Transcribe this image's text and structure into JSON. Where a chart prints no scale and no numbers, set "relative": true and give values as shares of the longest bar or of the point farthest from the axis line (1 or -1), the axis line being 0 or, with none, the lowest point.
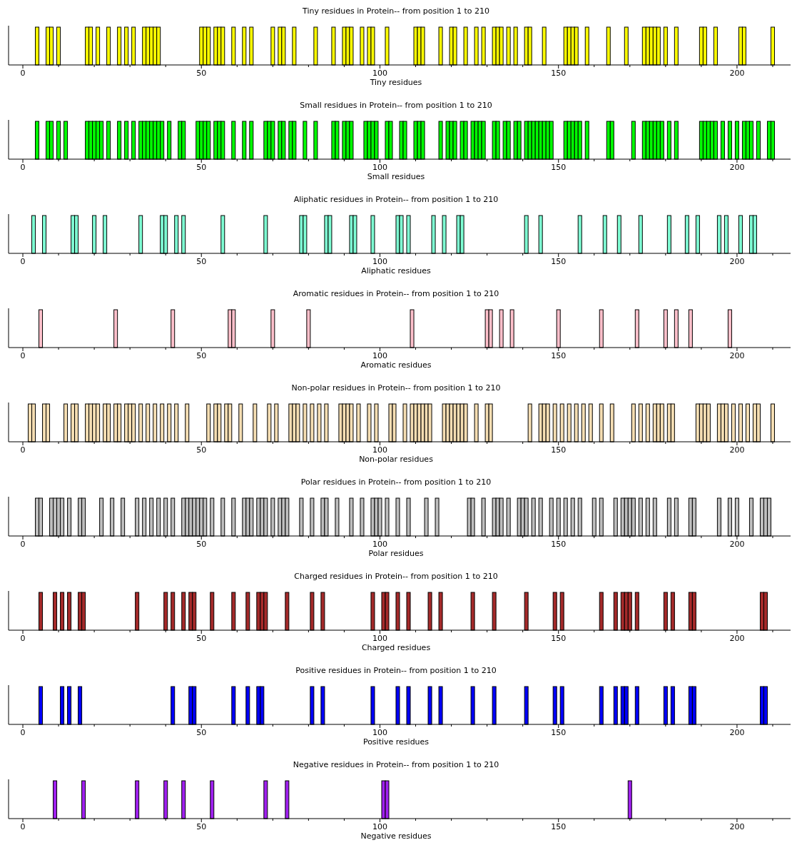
{
  "chart_data": [
    {
      "type": "bar",
      "title": "Tiny residues in Protein-- from position 1 to 210",
      "xlabel": "Tiny residues",
      "color": "#ffff00",
      "relative": true,
      "tick_labels": "x",
      "xlim": [
        -4,
        215
      ],
      "xticks": [
        0,
        {
          "value": 10,
          "label": null
        },
        {
          "value": 20,
          "label": null
        },
        {
          "value": 30,
          "label": null
        },
        {
          "value": 40,
          "label": null
        },
        50,
        {
          "value": 60,
          "label": null
        },
        {
          "value": 70,
          "label": null
        },
        {
          "value": 80,
          "label": null
        },
        {
          "value": 90,
          "label": null
        },
        100,
        {
          "value": 110,
          "label": null
        },
        {
          "value": 120,
          "label": null
        },
        {
          "value": 130,
          "label": null
        },
        {
          "value": 140,
          "label": null
        },
        150,
        {
          "value": 160,
          "label": null
        },
        {
          "value": 170,
          "label": null
        },
        {
          "value": 180,
          "label": null
        },
        {
          "value": 190,
          "label": null
        },
        200,
        {
          "value": 210,
          "label": null
        }
      ],
      "x": [
        4,
        7,
        8,
        10,
        18,
        19,
        21,
        24,
        27,
        29,
        31,
        34,
        35,
        36,
        37,
        38,
        50,
        51,
        52,
        54,
        55,
        56,
        59,
        62,
        64,
        70,
        72,
        73,
        76,
        82,
        87,
        90,
        91,
        92,
        95,
        97,
        98,
        102,
        110,
        111,
        112,
        117,
        120,
        121,
        124,
        127,
        129,
        132,
        133,
        134,
        136,
        138,
        141,
        142,
        146,
        152,
        153,
        154,
        155,
        158,
        164,
        169,
        174,
        175,
        176,
        177,
        178,
        180,
        183,
        190,
        191,
        194,
        201,
        202,
        210
      ],
      "values": [
        1,
        1,
        1,
        1,
        1,
        1,
        1,
        1,
        1,
        1,
        1,
        1,
        1,
        1,
        1,
        1,
        1,
        1,
        1,
        1,
        1,
        1,
        1,
        1,
        1,
        1,
        1,
        1,
        1,
        1,
        1,
        1,
        1,
        1,
        1,
        1,
        1,
        1,
        1,
        1,
        1,
        1,
        1,
        1,
        1,
        1,
        1,
        1,
        1,
        1,
        1,
        1,
        1,
        1,
        1,
        1,
        1,
        1,
        1,
        1,
        1,
        1,
        1,
        1,
        1,
        1,
        1,
        1,
        1,
        1,
        1,
        1,
        1,
        1,
        1
      ]
    },
    {
      "type": "bar",
      "title": "Small residues in Protein-- from position 1 to 210",
      "xlabel": "Small residues",
      "color": "#00ff00",
      "relative": true,
      "tick_labels": "x",
      "xlim": [
        -4,
        215
      ],
      "xticks": [
        0,
        {
          "value": 10,
          "label": null
        },
        {
          "value": 20,
          "label": null
        },
        {
          "value": 30,
          "label": null
        },
        {
          "value": 40,
          "label": null
        },
        50,
        {
          "value": 60,
          "label": null
        },
        {
          "value": 70,
          "label": null
        },
        {
          "value": 80,
          "label": null
        },
        {
          "value": 90,
          "label": null
        },
        100,
        {
          "value": 110,
          "label": null
        },
        {
          "value": 120,
          "label": null
        },
        {
          "value": 130,
          "label": null
        },
        {
          "value": 140,
          "label": null
        },
        150,
        {
          "value": 160,
          "label": null
        },
        {
          "value": 170,
          "label": null
        },
        {
          "value": 180,
          "label": null
        },
        {
          "value": 190,
          "label": null
        },
        200,
        {
          "value": 210,
          "label": null
        }
      ],
      "x": [
        4,
        7,
        8,
        10,
        12,
        18,
        19,
        20,
        21,
        22,
        24,
        27,
        29,
        31,
        33,
        34,
        35,
        36,
        37,
        38,
        39,
        41,
        44,
        45,
        49,
        50,
        51,
        52,
        54,
        55,
        56,
        59,
        62,
        64,
        68,
        69,
        70,
        72,
        73,
        75,
        76,
        79,
        82,
        87,
        88,
        90,
        91,
        92,
        96,
        97,
        98,
        99,
        102,
        103,
        106,
        107,
        110,
        111,
        112,
        117,
        119,
        120,
        121,
        123,
        124,
        126,
        127,
        128,
        129,
        132,
        133,
        135,
        136,
        138,
        139,
        141,
        142,
        143,
        144,
        145,
        146,
        147,
        148,
        152,
        153,
        154,
        155,
        156,
        158,
        164,
        165,
        171,
        174,
        175,
        176,
        177,
        178,
        179,
        181,
        183,
        190,
        191,
        192,
        193,
        194,
        196,
        198,
        200,
        202,
        203,
        204,
        206,
        209,
        210
      ],
      "values": [
        1,
        1,
        1,
        1,
        1,
        1,
        1,
        1,
        1,
        1,
        1,
        1,
        1,
        1,
        1,
        1,
        1,
        1,
        1,
        1,
        1,
        1,
        1,
        1,
        1,
        1,
        1,
        1,
        1,
        1,
        1,
        1,
        1,
        1,
        1,
        1,
        1,
        1,
        1,
        1,
        1,
        1,
        1,
        1,
        1,
        1,
        1,
        1,
        1,
        1,
        1,
        1,
        1,
        1,
        1,
        1,
        1,
        1,
        1,
        1,
        1,
        1,
        1,
        1,
        1,
        1,
        1,
        1,
        1,
        1,
        1,
        1,
        1,
        1,
        1,
        1,
        1,
        1,
        1,
        1,
        1,
        1,
        1,
        1,
        1,
        1,
        1,
        1,
        1,
        1,
        1,
        1,
        1,
        1,
        1,
        1,
        1,
        1,
        1,
        1,
        1,
        1,
        1,
        1,
        1,
        1,
        1,
        1,
        1,
        1,
        1,
        1,
        1,
        1
      ]
    },
    {
      "type": "bar",
      "title": "Aliphatic residues in Protein-- from position 1 to 210",
      "xlabel": "Aliphatic residues",
      "color": "#7fffd4",
      "relative": true,
      "tick_labels": "x",
      "xlim": [
        -4,
        215
      ],
      "xticks": [
        0,
        {
          "value": 10,
          "label": null
        },
        {
          "value": 20,
          "label": null
        },
        {
          "value": 30,
          "label": null
        },
        {
          "value": 40,
          "label": null
        },
        50,
        {
          "value": 60,
          "label": null
        },
        {
          "value": 70,
          "label": null
        },
        {
          "value": 80,
          "label": null
        },
        {
          "value": 90,
          "label": null
        },
        100,
        {
          "value": 110,
          "label": null
        },
        {
          "value": 120,
          "label": null
        },
        {
          "value": 130,
          "label": null
        },
        {
          "value": 140,
          "label": null
        },
        150,
        {
          "value": 160,
          "label": null
        },
        {
          "value": 170,
          "label": null
        },
        {
          "value": 180,
          "label": null
        },
        {
          "value": 190,
          "label": null
        },
        200,
        {
          "value": 210,
          "label": null
        }
      ],
      "x": [
        3,
        6,
        14,
        15,
        20,
        23,
        33,
        39,
        40,
        43,
        45,
        56,
        68,
        78,
        79,
        85,
        86,
        92,
        93,
        98,
        105,
        106,
        108,
        115,
        118,
        122,
        123,
        141,
        145,
        156,
        163,
        167,
        173,
        181,
        186,
        189,
        195,
        197,
        201,
        204,
        205
      ],
      "values": [
        1,
        1,
        1,
        1,
        1,
        1,
        1,
        1,
        1,
        1,
        1,
        1,
        1,
        1,
        1,
        1,
        1,
        1,
        1,
        1,
        1,
        1,
        1,
        1,
        1,
        1,
        1,
        1,
        1,
        1,
        1,
        1,
        1,
        1,
        1,
        1,
        1,
        1,
        1,
        1,
        1
      ]
    },
    {
      "type": "bar",
      "title": "Aromatic residues in Protein-- from position 1 to 210",
      "xlabel": "Aromatic residues",
      "color": "#ffc0cb",
      "relative": true,
      "tick_labels": "x",
      "xlim": [
        -4,
        215
      ],
      "xticks": [
        0,
        {
          "value": 10,
          "label": null
        },
        {
          "value": 20,
          "label": null
        },
        {
          "value": 30,
          "label": null
        },
        {
          "value": 40,
          "label": null
        },
        50,
        {
          "value": 60,
          "label": null
        },
        {
          "value": 70,
          "label": null
        },
        {
          "value": 80,
          "label": null
        },
        {
          "value": 90,
          "label": null
        },
        100,
        {
          "value": 110,
          "label": null
        },
        {
          "value": 120,
          "label": null
        },
        {
          "value": 130,
          "label": null
        },
        {
          "value": 140,
          "label": null
        },
        150,
        {
          "value": 160,
          "label": null
        },
        {
          "value": 170,
          "label": null
        },
        {
          "value": 180,
          "label": null
        },
        {
          "value": 190,
          "label": null
        },
        200,
        {
          "value": 210,
          "label": null
        }
      ],
      "x": [
        5,
        26,
        42,
        58,
        59,
        70,
        80,
        109,
        130,
        131,
        134,
        137,
        150,
        162,
        172,
        180,
        183,
        187,
        198
      ],
      "values": [
        1,
        1,
        1,
        1,
        1,
        1,
        1,
        1,
        1,
        1,
        1,
        1,
        1,
        1,
        1,
        1,
        1,
        1,
        1
      ]
    },
    {
      "type": "bar",
      "title": "Non-polar residues in Protein-- from position 1 to 210",
      "xlabel": "Non-polar residues",
      "color": "#f5deb3",
      "relative": true,
      "tick_labels": "x",
      "xlim": [
        -4,
        215
      ],
      "xticks": [
        0,
        {
          "value": 10,
          "label": null
        },
        {
          "value": 20,
          "label": null
        },
        {
          "value": 30,
          "label": null
        },
        {
          "value": 40,
          "label": null
        },
        50,
        {
          "value": 60,
          "label": null
        },
        {
          "value": 70,
          "label": null
        },
        {
          "value": 80,
          "label": null
        },
        {
          "value": 90,
          "label": null
        },
        100,
        {
          "value": 110,
          "label": null
        },
        {
          "value": 120,
          "label": null
        },
        {
          "value": 130,
          "label": null
        },
        {
          "value": 140,
          "label": null
        },
        150,
        {
          "value": 160,
          "label": null
        },
        {
          "value": 170,
          "label": null
        },
        {
          "value": 180,
          "label": null
        },
        {
          "value": 190,
          "label": null
        },
        200,
        {
          "value": 210,
          "label": null
        }
      ],
      "x": [
        2,
        3,
        6,
        7,
        12,
        14,
        15,
        18,
        19,
        20,
        21,
        23,
        24,
        26,
        27,
        29,
        30,
        31,
        33,
        35,
        37,
        39,
        41,
        43,
        46,
        52,
        54,
        55,
        57,
        58,
        61,
        65,
        69,
        71,
        75,
        76,
        77,
        79,
        81,
        83,
        85,
        89,
        90,
        91,
        92,
        94,
        97,
        99,
        103,
        104,
        107,
        109,
        110,
        111,
        112,
        113,
        114,
        118,
        119,
        120,
        121,
        122,
        123,
        124,
        127,
        130,
        131,
        142,
        145,
        146,
        147,
        149,
        151,
        153,
        155,
        157,
        159,
        162,
        165,
        171,
        173,
        175,
        177,
        178,
        179,
        181,
        182,
        189,
        190,
        191,
        192,
        195,
        196,
        197,
        199,
        201,
        203,
        205,
        206,
        210
      ],
      "values": [
        1,
        1,
        1,
        1,
        1,
        1,
        1,
        1,
        1,
        1,
        1,
        1,
        1,
        1,
        1,
        1,
        1,
        1,
        1,
        1,
        1,
        1,
        1,
        1,
        1,
        1,
        1,
        1,
        1,
        1,
        1,
        1,
        1,
        1,
        1,
        1,
        1,
        1,
        1,
        1,
        1,
        1,
        1,
        1,
        1,
        1,
        1,
        1,
        1,
        1,
        1,
        1,
        1,
        1,
        1,
        1,
        1,
        1,
        1,
        1,
        1,
        1,
        1,
        1,
        1,
        1,
        1,
        1,
        1,
        1,
        1,
        1,
        1,
        1,
        1,
        1,
        1,
        1,
        1,
        1,
        1,
        1,
        1,
        1,
        1,
        1,
        1,
        1,
        1,
        1,
        1,
        1,
        1,
        1,
        1,
        1,
        1,
        1,
        1,
        1
      ]
    },
    {
      "type": "bar",
      "title": "Polar residues in Protein-- from position 1 to 210",
      "xlabel": "Polar residues",
      "color": "#bebebe",
      "relative": true,
      "tick_labels": "x",
      "xlim": [
        -4,
        215
      ],
      "xticks": [
        0,
        {
          "value": 10,
          "label": null
        },
        {
          "value": 20,
          "label": null
        },
        {
          "value": 30,
          "label": null
        },
        {
          "value": 40,
          "label": null
        },
        50,
        {
          "value": 60,
          "label": null
        },
        {
          "value": 70,
          "label": null
        },
        {
          "value": 80,
          "label": null
        },
        {
          "value": 90,
          "label": null
        },
        100,
        {
          "value": 110,
          "label": null
        },
        {
          "value": 120,
          "label": null
        },
        {
          "value": 130,
          "label": null
        },
        {
          "value": 140,
          "label": null
        },
        150,
        {
          "value": 160,
          "label": null
        },
        {
          "value": 170,
          "label": null
        },
        {
          "value": 180,
          "label": null
        },
        {
          "value": 190,
          "label": null
        },
        200,
        {
          "value": 210,
          "label": null
        }
      ],
      "x": [
        4,
        5,
        8,
        9,
        10,
        11,
        13,
        16,
        17,
        22,
        25,
        28,
        32,
        34,
        36,
        38,
        40,
        42,
        45,
        46,
        47,
        48,
        49,
        50,
        51,
        53,
        56,
        59,
        62,
        63,
        64,
        66,
        67,
        68,
        70,
        72,
        73,
        74,
        78,
        81,
        84,
        85,
        88,
        92,
        95,
        98,
        99,
        100,
        102,
        105,
        108,
        113,
        116,
        125,
        126,
        129,
        132,
        133,
        134,
        136,
        139,
        140,
        141,
        143,
        145,
        148,
        150,
        152,
        154,
        156,
        160,
        162,
        166,
        168,
        169,
        170,
        171,
        173,
        175,
        177,
        181,
        183,
        187,
        188,
        195,
        198,
        200,
        204,
        207,
        208,
        209
      ],
      "values": [
        1,
        1,
        1,
        1,
        1,
        1,
        1,
        1,
        1,
        1,
        1,
        1,
        1,
        1,
        1,
        1,
        1,
        1,
        1,
        1,
        1,
        1,
        1,
        1,
        1,
        1,
        1,
        1,
        1,
        1,
        1,
        1,
        1,
        1,
        1,
        1,
        1,
        1,
        1,
        1,
        1,
        1,
        1,
        1,
        1,
        1,
        1,
        1,
        1,
        1,
        1,
        1,
        1,
        1,
        1,
        1,
        1,
        1,
        1,
        1,
        1,
        1,
        1,
        1,
        1,
        1,
        1,
        1,
        1,
        1,
        1,
        1,
        1,
        1,
        1,
        1,
        1,
        1,
        1,
        1,
        1,
        1,
        1,
        1,
        1,
        1,
        1,
        1,
        1,
        1,
        1
      ]
    },
    {
      "type": "bar",
      "title": "Charged residues in Protein-- from position 1 to 210",
      "xlabel": "Charged residues",
      "color": "#a52a2a",
      "relative": true,
      "tick_labels": "x",
      "xlim": [
        -4,
        215
      ],
      "xticks": [
        0,
        {
          "value": 10,
          "label": null
        },
        {
          "value": 20,
          "label": null
        },
        {
          "value": 30,
          "label": null
        },
        {
          "value": 40,
          "label": null
        },
        50,
        {
          "value": 60,
          "label": null
        },
        {
          "value": 70,
          "label": null
        },
        {
          "value": 80,
          "label": null
        },
        {
          "value": 90,
          "label": null
        },
        100,
        {
          "value": 110,
          "label": null
        },
        {
          "value": 120,
          "label": null
        },
        {
          "value": 130,
          "label": null
        },
        {
          "value": 140,
          "label": null
        },
        150,
        {
          "value": 160,
          "label": null
        },
        {
          "value": 170,
          "label": null
        },
        {
          "value": 180,
          "label": null
        },
        {
          "value": 190,
          "label": null
        },
        200,
        {
          "value": 210,
          "label": null
        }
      ],
      "x": [
        5,
        9,
        11,
        13,
        16,
        17,
        32,
        40,
        42,
        45,
        47,
        48,
        53,
        59,
        63,
        66,
        67,
        68,
        74,
        81,
        84,
        98,
        101,
        102,
        105,
        108,
        114,
        117,
        126,
        132,
        141,
        149,
        151,
        162,
        166,
        168,
        169,
        170,
        172,
        180,
        182,
        187,
        188,
        207,
        208
      ],
      "values": [
        1,
        1,
        1,
        1,
        1,
        1,
        1,
        1,
        1,
        1,
        1,
        1,
        1,
        1,
        1,
        1,
        1,
        1,
        1,
        1,
        1,
        1,
        1,
        1,
        1,
        1,
        1,
        1,
        1,
        1,
        1,
        1,
        1,
        1,
        1,
        1,
        1,
        1,
        1,
        1,
        1,
        1,
        1,
        1,
        1
      ]
    },
    {
      "type": "bar",
      "title": "Positive residues in Protein-- from position 1 to 210",
      "xlabel": "Positive residues",
      "color": "#0000ff",
      "relative": true,
      "tick_labels": "x",
      "xlim": [
        -4,
        215
      ],
      "xticks": [
        0,
        {
          "value": 10,
          "label": null
        },
        {
          "value": 20,
          "label": null
        },
        {
          "value": 30,
          "label": null
        },
        {
          "value": 40,
          "label": null
        },
        50,
        {
          "value": 60,
          "label": null
        },
        {
          "value": 70,
          "label": null
        },
        {
          "value": 80,
          "label": null
        },
        {
          "value": 90,
          "label": null
        },
        100,
        {
          "value": 110,
          "label": null
        },
        {
          "value": 120,
          "label": null
        },
        {
          "value": 130,
          "label": null
        },
        {
          "value": 140,
          "label": null
        },
        150,
        {
          "value": 160,
          "label": null
        },
        {
          "value": 170,
          "label": null
        },
        {
          "value": 180,
          "label": null
        },
        {
          "value": 190,
          "label": null
        },
        200,
        {
          "value": 210,
          "label": null
        }
      ],
      "x": [
        5,
        11,
        13,
        16,
        42,
        47,
        48,
        59,
        63,
        66,
        67,
        81,
        84,
        98,
        105,
        108,
        114,
        117,
        126,
        132,
        141,
        149,
        151,
        162,
        166,
        168,
        169,
        172,
        180,
        182,
        187,
        188,
        207,
        208
      ],
      "values": [
        1,
        1,
        1,
        1,
        1,
        1,
        1,
        1,
        1,
        1,
        1,
        1,
        1,
        1,
        1,
        1,
        1,
        1,
        1,
        1,
        1,
        1,
        1,
        1,
        1,
        1,
        1,
        1,
        1,
        1,
        1,
        1,
        1,
        1
      ]
    },
    {
      "type": "bar",
      "title": "Negative residues in Protein-- from position 1 to 210",
      "xlabel": "Negative residues",
      "color": "#a020f0",
      "relative": true,
      "tick_labels": "x",
      "xlim": [
        -4,
        215
      ],
      "xticks": [
        0,
        {
          "value": 10,
          "label": null
        },
        {
          "value": 20,
          "label": null
        },
        {
          "value": 30,
          "label": null
        },
        {
          "value": 40,
          "label": null
        },
        50,
        {
          "value": 60,
          "label": null
        },
        {
          "value": 70,
          "label": null
        },
        {
          "value": 80,
          "label": null
        },
        {
          "value": 90,
          "label": null
        },
        100,
        {
          "value": 110,
          "label": null
        },
        {
          "value": 120,
          "label": null
        },
        {
          "value": 130,
          "label": null
        },
        {
          "value": 140,
          "label": null
        },
        150,
        {
          "value": 160,
          "label": null
        },
        {
          "value": 170,
          "label": null
        },
        {
          "value": 180,
          "label": null
        },
        {
          "value": 190,
          "label": null
        },
        200,
        {
          "value": 210,
          "label": null
        }
      ],
      "x": [
        9,
        17,
        32,
        40,
        45,
        53,
        68,
        74,
        101,
        102,
        170
      ],
      "values": [
        1,
        1,
        1,
        1,
        1,
        1,
        1,
        1,
        1,
        1,
        1
      ]
    }
  ]
}
